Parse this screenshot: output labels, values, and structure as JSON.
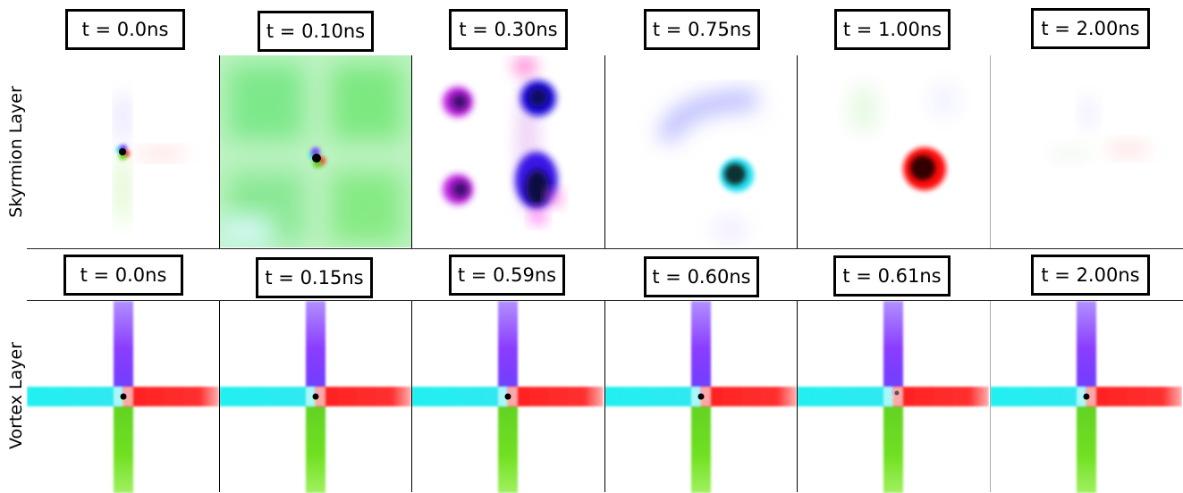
{
  "figure": {
    "rows": [
      {
        "label": "Skyrmion Layer",
        "frames": [
          {
            "time": "t = 0.0ns"
          },
          {
            "time": "t = 0.10ns"
          },
          {
            "time": "t = 0.30ns"
          },
          {
            "time": "t = 0.75ns"
          },
          {
            "time": "t = 1.00ns"
          },
          {
            "time": "t = 2.00ns"
          }
        ]
      },
      {
        "label": "Vortex Layer",
        "frames": [
          {
            "time": "t = 0.0ns"
          },
          {
            "time": "t = 0.15ns"
          },
          {
            "time": "t = 0.59ns"
          },
          {
            "time": "t = 0.60ns"
          },
          {
            "time": "t = 0.61ns"
          },
          {
            "time": "t = 2.00ns"
          }
        ]
      }
    ],
    "colors": {
      "cyan": "#22f0f0",
      "red": "#ff3030",
      "purple": "#8a3cff",
      "green": "#70e020",
      "magenta": "#c020e0",
      "blue": "#1010e0"
    }
  }
}
